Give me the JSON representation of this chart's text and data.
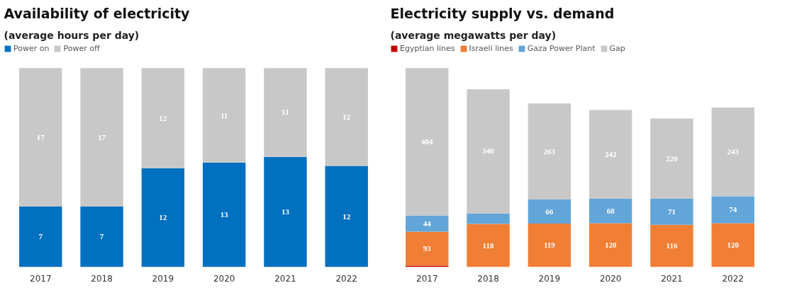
{
  "chart_data": [
    {
      "type": "bar",
      "title": "Availability of electricity",
      "subtitle": "(average hours per day)",
      "categories": [
        "2017",
        "2018",
        "2019",
        "2020",
        "2021",
        "2022"
      ],
      "stacked": true,
      "legend": "top left",
      "grid": false,
      "series": [
        {
          "name": "Power on",
          "color": "#0070c0",
          "values": [
            7.3,
            7.3,
            11.9,
            12.6,
            13.3,
            12.2
          ],
          "value_labels": [
            "7",
            "7",
            "12",
            "13",
            "13",
            "12"
          ]
        },
        {
          "name": "Power off",
          "color": "#c8c8c8",
          "values": [
            16.7,
            16.7,
            12.1,
            11.4,
            10.7,
            11.8
          ],
          "value_labels": [
            "17",
            "17",
            "12",
            "11",
            "11",
            "12"
          ]
        }
      ]
    },
    {
      "type": "bar",
      "title": "Electricity supply vs. demand",
      "subtitle": "(average megawatts per day)",
      "categories": [
        "2017",
        "2018",
        "2019",
        "2020",
        "2021",
        "2022"
      ],
      "stacked": true,
      "legend": "top left",
      "grid": false,
      "series": [
        {
          "name": "Egyptian lines",
          "color": "#c00000",
          "values": [
            4,
            null,
            null,
            null,
            null,
            null
          ],
          "value_labels": [
            null,
            null,
            null,
            null,
            null,
            null
          ]
        },
        {
          "name": "Israeli lines",
          "color": "#f07e34",
          "values": [
            93,
            118,
            119,
            120,
            116,
            120
          ],
          "value_labels": [
            "93",
            "118",
            "119",
            "120",
            "116",
            "120"
          ]
        },
        {
          "name": "Gaza Power Plant",
          "color": "#62a5d8",
          "values": [
            44,
            29,
            66,
            68,
            71,
            74
          ],
          "value_labels": [
            "44",
            null,
            "66",
            "68",
            "71",
            "74"
          ]
        },
        {
          "name": "Gap",
          "color": "#c8c8c8",
          "values": [
            404,
            340,
            263,
            242,
            220,
            243
          ],
          "value_labels": [
            "404",
            "340",
            "263",
            "242",
            "220",
            "243"
          ]
        }
      ]
    }
  ]
}
